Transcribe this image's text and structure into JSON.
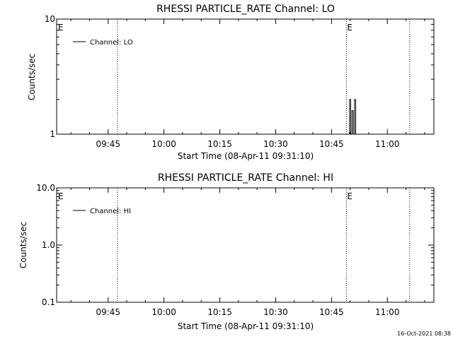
{
  "footer": {
    "timestamp": "16-Oct-2021 08:38"
  },
  "chart_data": [
    {
      "type": "line",
      "title": "RHESSI PARTICLE_RATE Channel: LO",
      "xlabel": "Start Time (08-Apr-11 09:31:10)",
      "ylabel": "Counts/sec",
      "yscale": "log",
      "ylim": [
        1,
        10
      ],
      "xlim": [
        "09:31:10",
        "11:12:30"
      ],
      "x_ticks": [
        "09:45",
        "10:00",
        "10:15",
        "10:30",
        "10:45",
        "11:00"
      ],
      "y_ticks": [
        "1",
        "10"
      ],
      "legend": {
        "position": "top-left",
        "entries": [
          "Channel: LO"
        ]
      },
      "event_markers": [
        {
          "time": "09:30:50",
          "label": "E"
        },
        {
          "time": "09:47:30",
          "label": ""
        },
        {
          "time": "10:49:00",
          "label": "E"
        },
        {
          "time": "11:06:00",
          "label": ""
        }
      ],
      "series": [
        {
          "name": "Channel: LO",
          "x": [
            "10:49:30",
            "10:49:50",
            "10:50:10",
            "10:50:30",
            "10:50:50",
            "10:51:10",
            "10:51:30",
            "10:51:50"
          ],
          "y": [
            1,
            2,
            1,
            1.6,
            1,
            2,
            1,
            1
          ]
        }
      ]
    },
    {
      "type": "line",
      "title": "RHESSI PARTICLE_RATE Channel: HI",
      "xlabel": "Start Time (08-Apr-11 09:31:10)",
      "ylabel": "Counts/sec",
      "yscale": "log",
      "ylim": [
        0.1,
        10
      ],
      "xlim": [
        "09:31:10",
        "11:12:30"
      ],
      "x_ticks": [
        "09:45",
        "10:00",
        "10:15",
        "10:30",
        "10:45",
        "11:00"
      ],
      "y_ticks": [
        "0.1",
        "1.0",
        "10.0"
      ],
      "legend": {
        "position": "top-left",
        "entries": [
          "Channel: HI"
        ]
      },
      "event_markers": [
        {
          "time": "09:30:50",
          "label": "E"
        },
        {
          "time": "09:47:30",
          "label": ""
        },
        {
          "time": "10:49:00",
          "label": "E"
        },
        {
          "time": "11:06:00",
          "label": ""
        }
      ],
      "series": [
        {
          "name": "Channel: HI",
          "x": [],
          "y": []
        }
      ]
    }
  ]
}
